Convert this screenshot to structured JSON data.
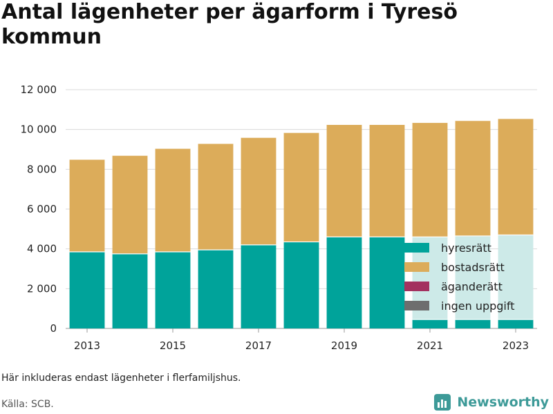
{
  "title": "Antal lägenheter per ägarform i Tyresö kommun",
  "note": "Här inkluderas endast lägenheter i flerfamiljshus.",
  "source": "Källa: SCB.",
  "brand": {
    "name": "Newsworthy",
    "icon": "newsworthy-logo-icon",
    "color": "#3d9a98"
  },
  "chart_data": {
    "type": "bar",
    "stacked": true,
    "categories": [
      "2013",
      "2014",
      "2015",
      "2016",
      "2017",
      "2018",
      "2019",
      "2020",
      "2021",
      "2022",
      "2023"
    ],
    "x_tick_labels": [
      "2013",
      "2015",
      "2017",
      "2019",
      "2021",
      "2023"
    ],
    "y_tick_labels": [
      "0",
      "2 000",
      "4 000",
      "6 000",
      "8 000",
      "10 000",
      "12 000"
    ],
    "ylim": [
      0,
      12000
    ],
    "grid": true,
    "legend_position": "bottom-right",
    "series": [
      {
        "name": "hyresrätt",
        "color": "#00a39a",
        "values": [
          3850,
          3750,
          3850,
          3950,
          4200,
          4350,
          4600,
          4600,
          450,
          450,
          450
        ]
      },
      {
        "name": "bostadsrätt",
        "color": "#dcac5a",
        "values": [
          4650,
          4950,
          5200,
          5350,
          5400,
          5500,
          5650,
          5650,
          5750,
          5800,
          5850
        ]
      },
      {
        "name": "äganderätt",
        "color": "#a3315f",
        "values": [
          0,
          0,
          0,
          0,
          0,
          0,
          0,
          0,
          0,
          0,
          0
        ]
      },
      {
        "name": "ingen uppgift",
        "color": "#6e6e6e",
        "values": [
          0,
          0,
          0,
          0,
          0,
          0,
          0,
          0,
          0,
          0,
          0
        ]
      }
    ],
    "hidden_segments": [
      {
        "name": "hyresrätt",
        "values": [
          0,
          0,
          0,
          0,
          0,
          0,
          0,
          0,
          4150,
          4200,
          4250
        ]
      }
    ]
  }
}
